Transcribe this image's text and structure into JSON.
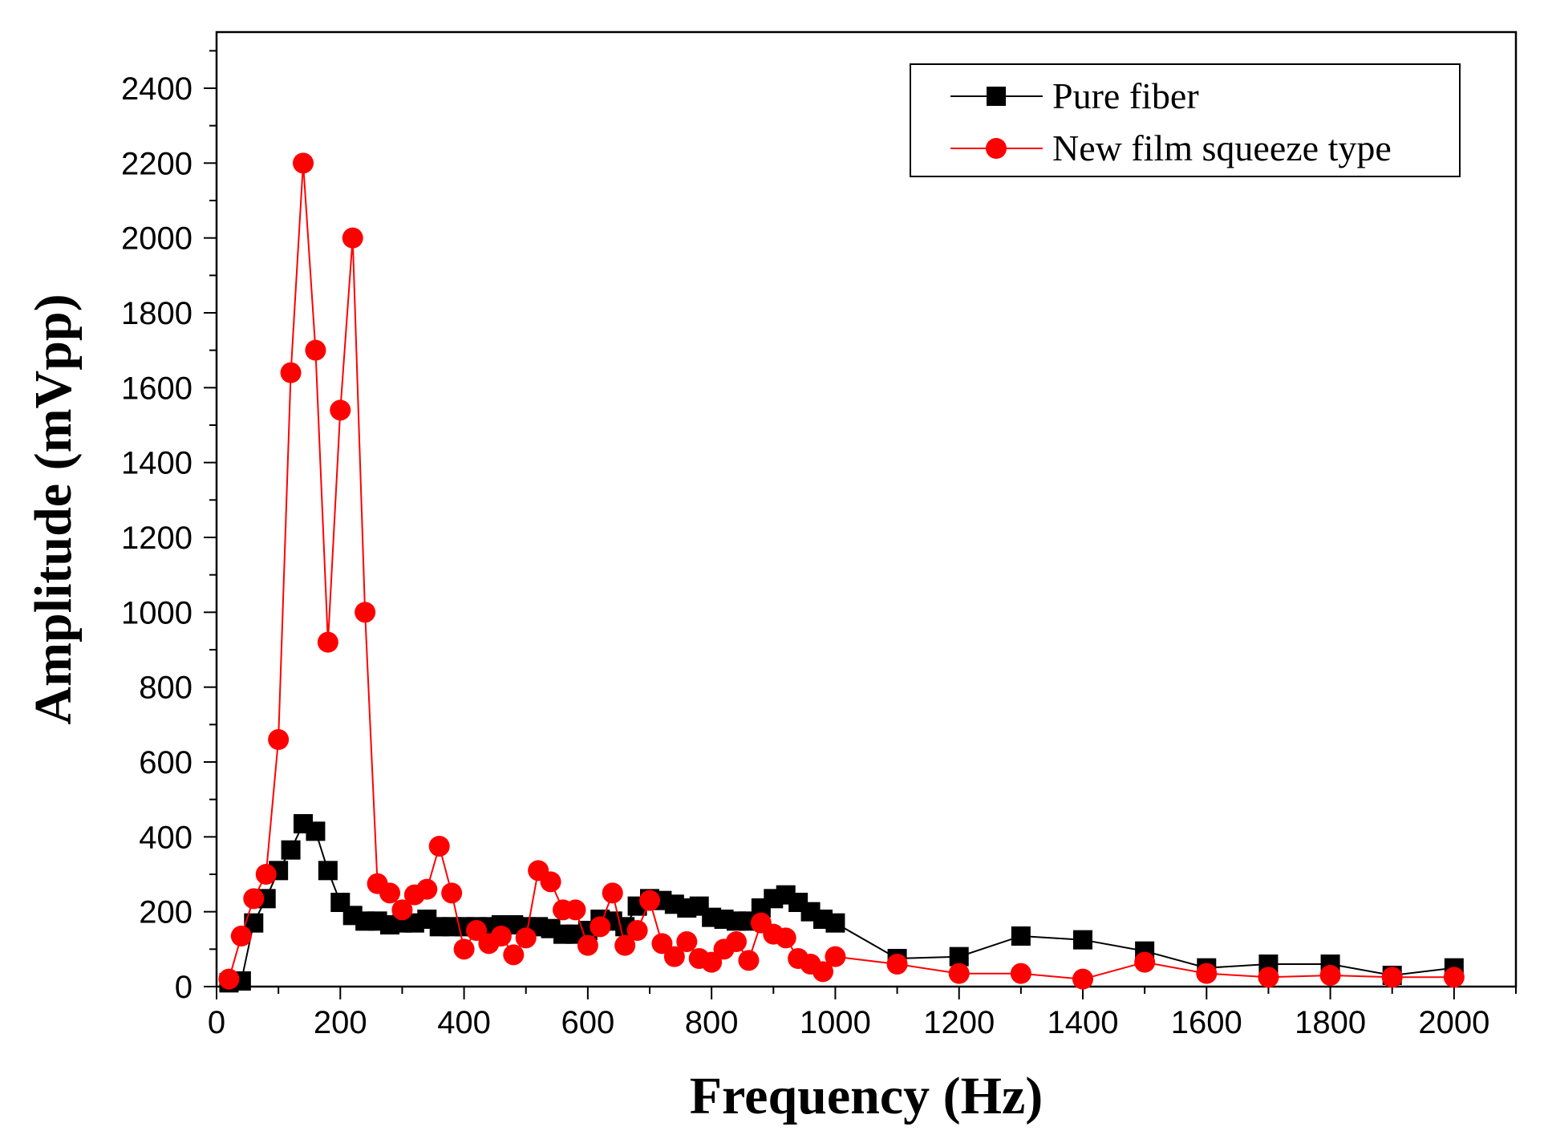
{
  "chart_data": {
    "type": "line",
    "xlabel": "Frequency (Hz)",
    "ylabel": "Amplitude (mVpp)",
    "xlim": [
      0,
      2100
    ],
    "ylim": [
      0,
      2550
    ],
    "xticks": [
      0,
      200,
      400,
      600,
      800,
      1000,
      1200,
      1400,
      1600,
      1800,
      2000
    ],
    "yticks": [
      0,
      200,
      400,
      600,
      800,
      1000,
      1200,
      1400,
      1600,
      1800,
      2000,
      2200,
      2400
    ],
    "xtick_labels": [
      "0",
      "200",
      "400",
      "600",
      "800",
      "1000",
      "1200",
      "1400",
      "1600",
      "1800",
      "2000"
    ],
    "ytick_labels": [
      "0",
      "200",
      "400",
      "600",
      "800",
      "1000",
      "1200",
      "1400",
      "1600",
      "1800",
      "2000",
      "2200",
      "2400"
    ],
    "grid": false,
    "legend_position": "top-right",
    "series": [
      {
        "name": "Pure fiber",
        "color": "#000000",
        "marker": "square",
        "x": [
          20,
          40,
          60,
          80,
          100,
          120,
          140,
          160,
          180,
          200,
          220,
          240,
          260,
          280,
          300,
          320,
          340,
          360,
          380,
          400,
          420,
          440,
          460,
          480,
          500,
          520,
          540,
          560,
          580,
          600,
          620,
          640,
          660,
          680,
          700,
          720,
          740,
          760,
          780,
          800,
          820,
          840,
          860,
          880,
          900,
          920,
          940,
          960,
          980,
          1000,
          1100,
          1200,
          1300,
          1400,
          1500,
          1600,
          1700,
          1800,
          1900,
          2000
        ],
        "y": [
          10,
          15,
          170,
          235,
          310,
          365,
          435,
          415,
          310,
          225,
          190,
          175,
          175,
          165,
          170,
          170,
          180,
          160,
          160,
          160,
          160,
          160,
          165,
          165,
          160,
          160,
          155,
          140,
          140,
          150,
          180,
          175,
          160,
          215,
          235,
          230,
          220,
          210,
          215,
          185,
          180,
          175,
          175,
          210,
          235,
          245,
          225,
          200,
          180,
          170,
          75,
          80,
          135,
          125,
          95,
          50,
          60,
          60,
          30,
          50
        ]
      },
      {
        "name": "New film squeeze type",
        "color": "#ff0000",
        "marker": "circle",
        "x": [
          20,
          40,
          60,
          80,
          100,
          120,
          140,
          160,
          180,
          200,
          220,
          240,
          260,
          280,
          300,
          320,
          340,
          360,
          380,
          400,
          420,
          440,
          460,
          480,
          500,
          520,
          540,
          560,
          580,
          600,
          620,
          640,
          660,
          680,
          700,
          720,
          740,
          760,
          780,
          800,
          820,
          840,
          860,
          880,
          900,
          920,
          940,
          960,
          980,
          1000,
          1100,
          1200,
          1300,
          1400,
          1500,
          1600,
          1700,
          1800,
          1900,
          2000
        ],
        "y": [
          20,
          135,
          235,
          300,
          660,
          1640,
          2200,
          1700,
          920,
          1540,
          2000,
          1000,
          275,
          250,
          205,
          245,
          260,
          375,
          250,
          100,
          150,
          115,
          135,
          85,
          130,
          310,
          280,
          205,
          205,
          110,
          160,
          250,
          110,
          150,
          230,
          115,
          80,
          120,
          75,
          65,
          100,
          120,
          70,
          170,
          140,
          130,
          75,
          60,
          40,
          80,
          60,
          35,
          35,
          20,
          65,
          35,
          25,
          30,
          25,
          25
        ]
      }
    ]
  }
}
